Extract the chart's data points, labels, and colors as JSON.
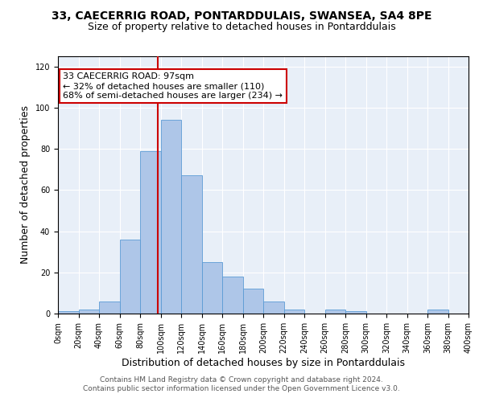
{
  "title1": "33, CAECERRIG ROAD, PONTARDDULAIS, SWANSEA, SA4 8PE",
  "title2": "Size of property relative to detached houses in Pontarddulais",
  "xlabel": "Distribution of detached houses by size in Pontarddulais",
  "ylabel": "Number of detached properties",
  "bin_edges": [
    0,
    20,
    40,
    60,
    80,
    100,
    120,
    140,
    160,
    180,
    200,
    220,
    240,
    260,
    280,
    300,
    320,
    340,
    360,
    380,
    400
  ],
  "bar_heights": [
    1,
    2,
    6,
    36,
    79,
    94,
    67,
    25,
    18,
    12,
    6,
    2,
    0,
    2,
    1,
    0,
    0,
    0,
    2,
    0
  ],
  "bar_color": "#aec6e8",
  "bar_edge_color": "#5b9bd5",
  "vline_x": 97,
  "vline_color": "#cc0000",
  "annotation_line1": "33 CAECERRIG ROAD: 97sqm",
  "annotation_line2": "← 32% of detached houses are smaller (110)",
  "annotation_line3": "68% of semi-detached houses are larger (234) →",
  "annotation_box_color": "white",
  "annotation_box_edge": "#cc0000",
  "ylim": [
    0,
    125
  ],
  "yticks": [
    0,
    20,
    40,
    60,
    80,
    100,
    120
  ],
  "xlim": [
    0,
    400
  ],
  "background_color": "#e8eff8",
  "footer_line1": "Contains HM Land Registry data © Crown copyright and database right 2024.",
  "footer_line2": "Contains public sector information licensed under the Open Government Licence v3.0.",
  "title1_fontsize": 10,
  "title2_fontsize": 9,
  "xlabel_fontsize": 9,
  "ylabel_fontsize": 9,
  "annotation_fontsize": 8,
  "footer_fontsize": 6.5,
  "tick_fontsize": 7
}
